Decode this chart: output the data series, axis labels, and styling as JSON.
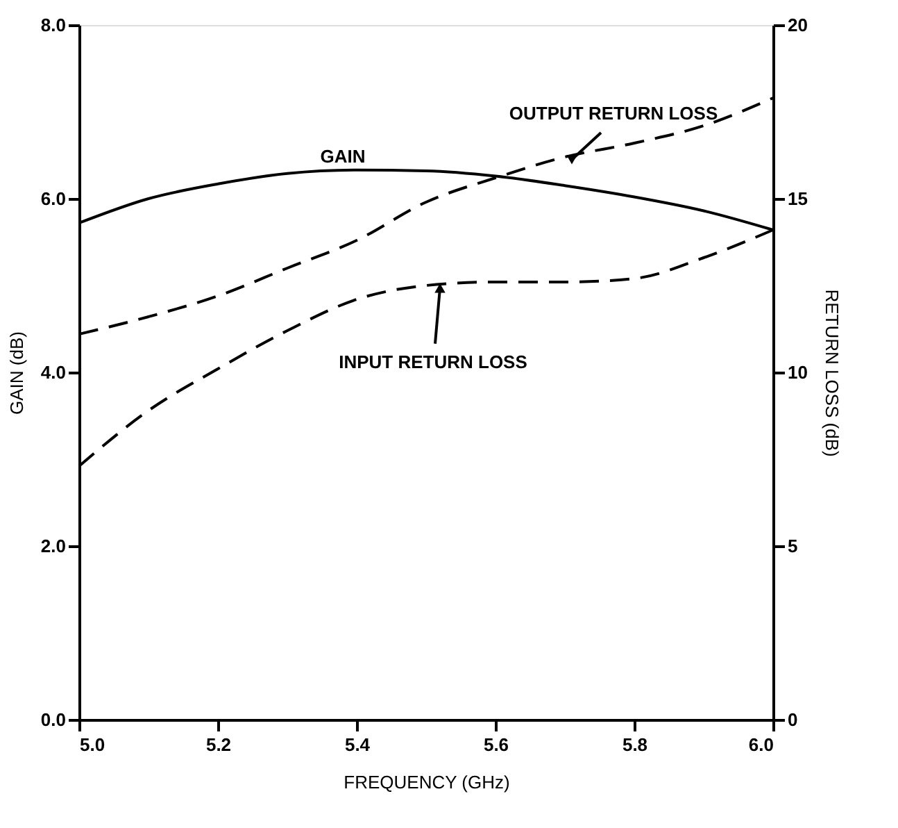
{
  "chart_data": {
    "type": "line",
    "xlabel": "FREQUENCY (GHz)",
    "ylabel": "GAIN (dB)",
    "y2label": "RETURN LOSS (dB)",
    "x": [
      5.0,
      5.1,
      5.2,
      5.3,
      5.4,
      5.5,
      5.6,
      5.7,
      5.8,
      5.9,
      6.0
    ],
    "xlim": [
      5.0,
      6.0
    ],
    "xticks": [
      {
        "value": 5.0,
        "label": "5.0"
      },
      5.2,
      5.4,
      5.6,
      5.8,
      {
        "value": 6.0,
        "label": "6.0"
      }
    ],
    "ylim": [
      0,
      8
    ],
    "yticks": [
      {
        "value": 0,
        "label": "0.0"
      },
      {
        "value": 2,
        "label": "2.0"
      },
      {
        "value": 4,
        "label": "4.0"
      },
      {
        "value": 6,
        "label": "6.0"
      },
      {
        "value": 8,
        "label": "8.0"
      }
    ],
    "y2lim": [
      0,
      20
    ],
    "y2ticks": [
      0,
      5,
      10,
      15,
      20
    ],
    "series": [
      {
        "color": "#000000",
        "line_style": "solid",
        "values": [
          5.72,
          6.0,
          6.17,
          6.29,
          6.33,
          6.32,
          6.26,
          6.15,
          6.02,
          5.86,
          5.64
        ]
      },
      {
        "color": "#000000",
        "line_style": "dashed",
        "axis": "y2",
        "values": [
          11.1,
          11.6,
          12.2,
          13.0,
          13.8,
          14.9,
          15.6,
          16.2,
          16.6,
          17.1,
          17.9
        ]
      },
      {
        "color": "#000000",
        "line_style": "dashed",
        "axis": "y2",
        "values": [
          7.3,
          8.9,
          10.1,
          11.2,
          12.1,
          12.5,
          12.6,
          12.6,
          12.7,
          13.3,
          14.1
        ]
      }
    ],
    "annotations": [
      {
        "text": "GAIN",
        "x": 5.38,
        "y": 6.33
      },
      {
        "text": "OUTPUT RETURN LOSS",
        "x": 5.71,
        "y": 6.45
      },
      {
        "text": "INPUT RETURN LOSS",
        "x": 5.52,
        "y": 4.97
      }
    ],
    "grid": false,
    "marker": "none"
  }
}
